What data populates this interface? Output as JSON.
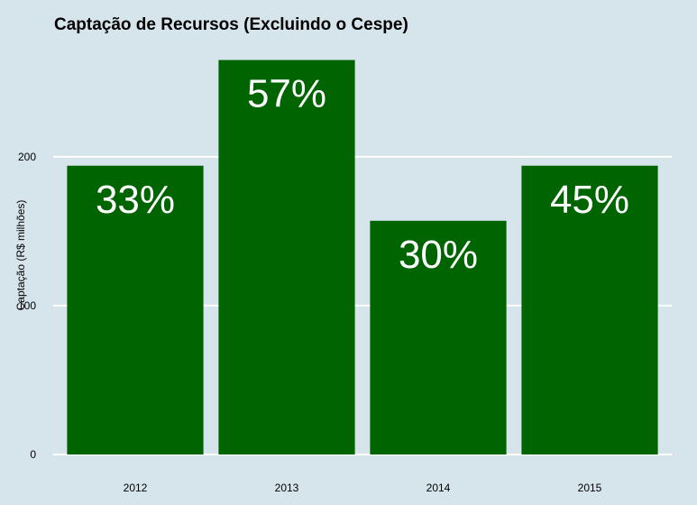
{
  "colors": {
    "background": "#d6e4eb",
    "bar": "#006400",
    "grid": "#ffffff",
    "data_label": "#ffffff"
  },
  "chart_data": {
    "type": "bar",
    "title": "Captação de Recursos (Excluindo o Cespe)",
    "xlabel": "",
    "ylabel": "Captação (R$ milhões)",
    "categories": [
      "2012",
      "2013",
      "2014",
      "2015"
    ],
    "values": [
      194,
      265,
      157,
      194
    ],
    "data_labels": [
      "33%",
      "57%",
      "30%",
      "45%"
    ],
    "yticks": [
      0,
      100,
      200
    ],
    "ylim": [
      0,
      272
    ],
    "grid": "horizontal",
    "legend": "none"
  }
}
